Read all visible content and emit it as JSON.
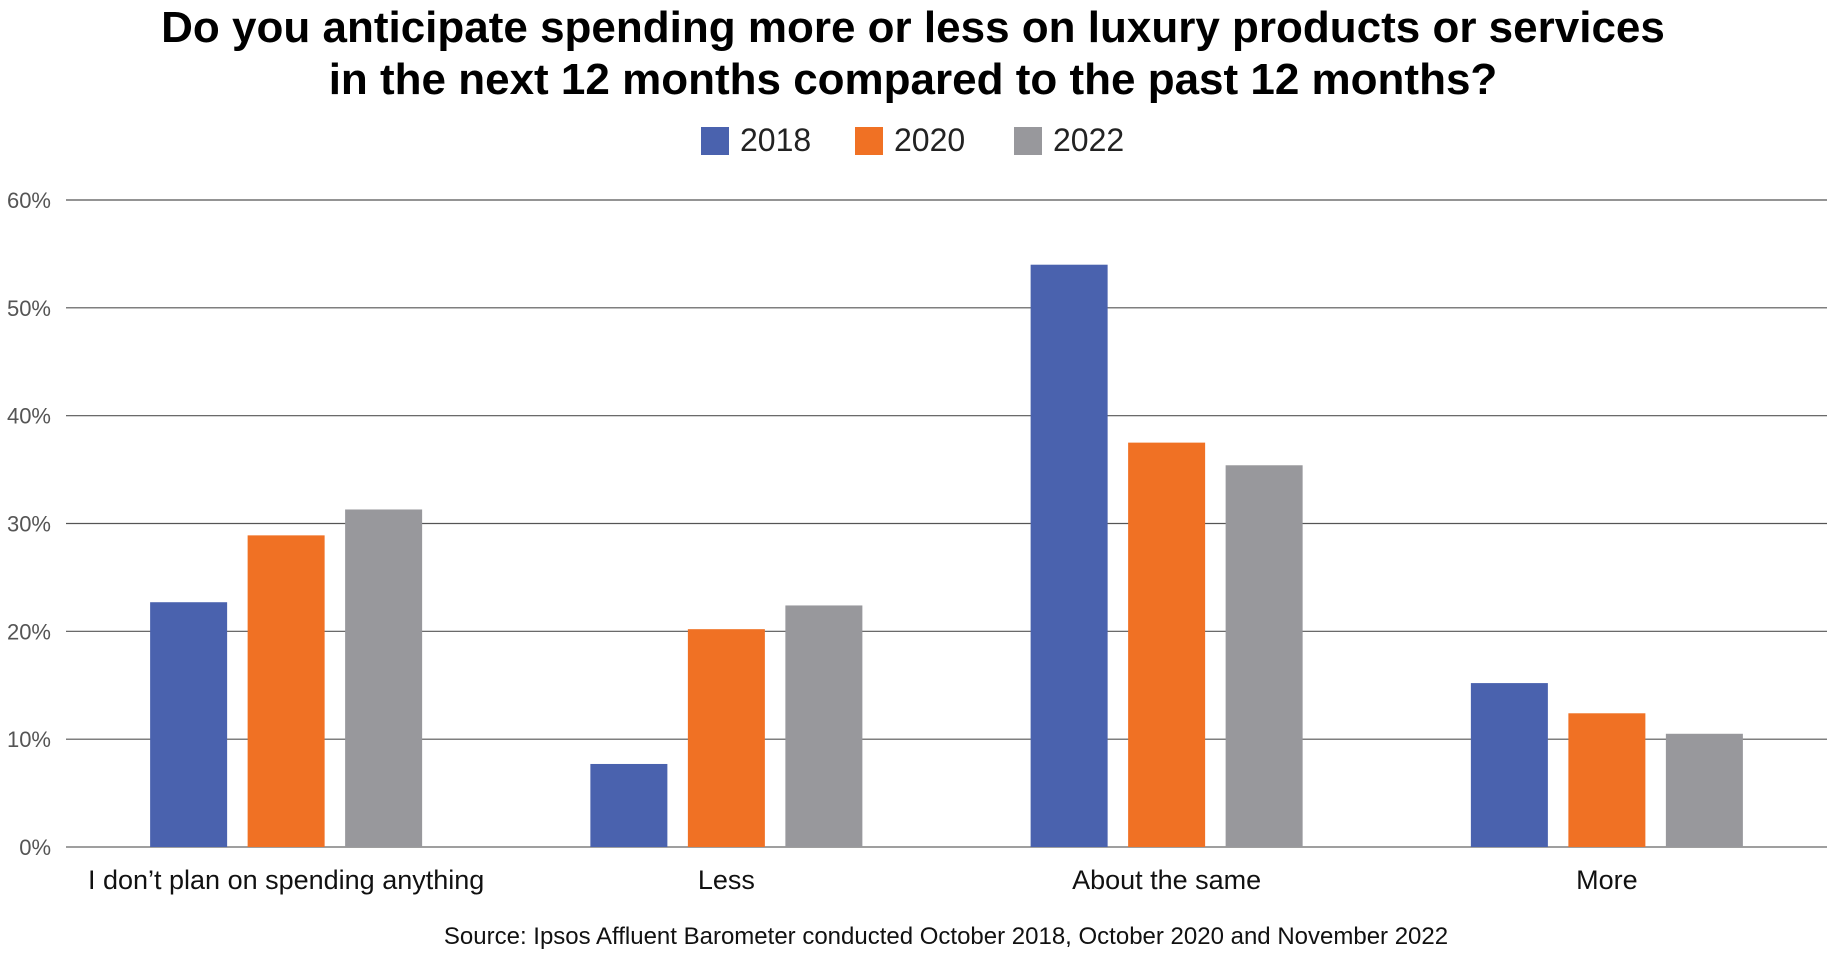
{
  "chart_data": {
    "type": "bar",
    "title": "Do you anticipate spending more or less on luxury products or services in the next 12 months compared to the past 12 months?",
    "title_lines": [
      "Do you anticipate spending more or less on luxury products or services",
      "in the next 12 months compared to the past 12 months?"
    ],
    "categories": [
      "I don’t plan on spending anything",
      "Less",
      "About the same",
      "More"
    ],
    "series": [
      {
        "name": "2018",
        "color": "#4A62AE",
        "values": [
          22.7,
          7.7,
          54.0,
          15.2
        ]
      },
      {
        "name": "2020",
        "color": "#F07124",
        "values": [
          28.9,
          20.2,
          37.5,
          12.4
        ]
      },
      {
        "name": "2022",
        "color": "#98989C",
        "values": [
          31.3,
          22.4,
          35.4,
          10.5
        ]
      }
    ],
    "ylim": [
      0,
      60
    ],
    "yticks": [
      0,
      10,
      20,
      30,
      40,
      50,
      60
    ],
    "ytick_labels": [
      "0%",
      "10%",
      "20%",
      "30%",
      "40%",
      "50%",
      "60%"
    ],
    "grid": true,
    "legend_position": "top-center",
    "xlabel": "",
    "ylabel": "",
    "source": "Source: Ipsos Affluent Barometer conducted October 2018, October 2020 and November 2022"
  }
}
